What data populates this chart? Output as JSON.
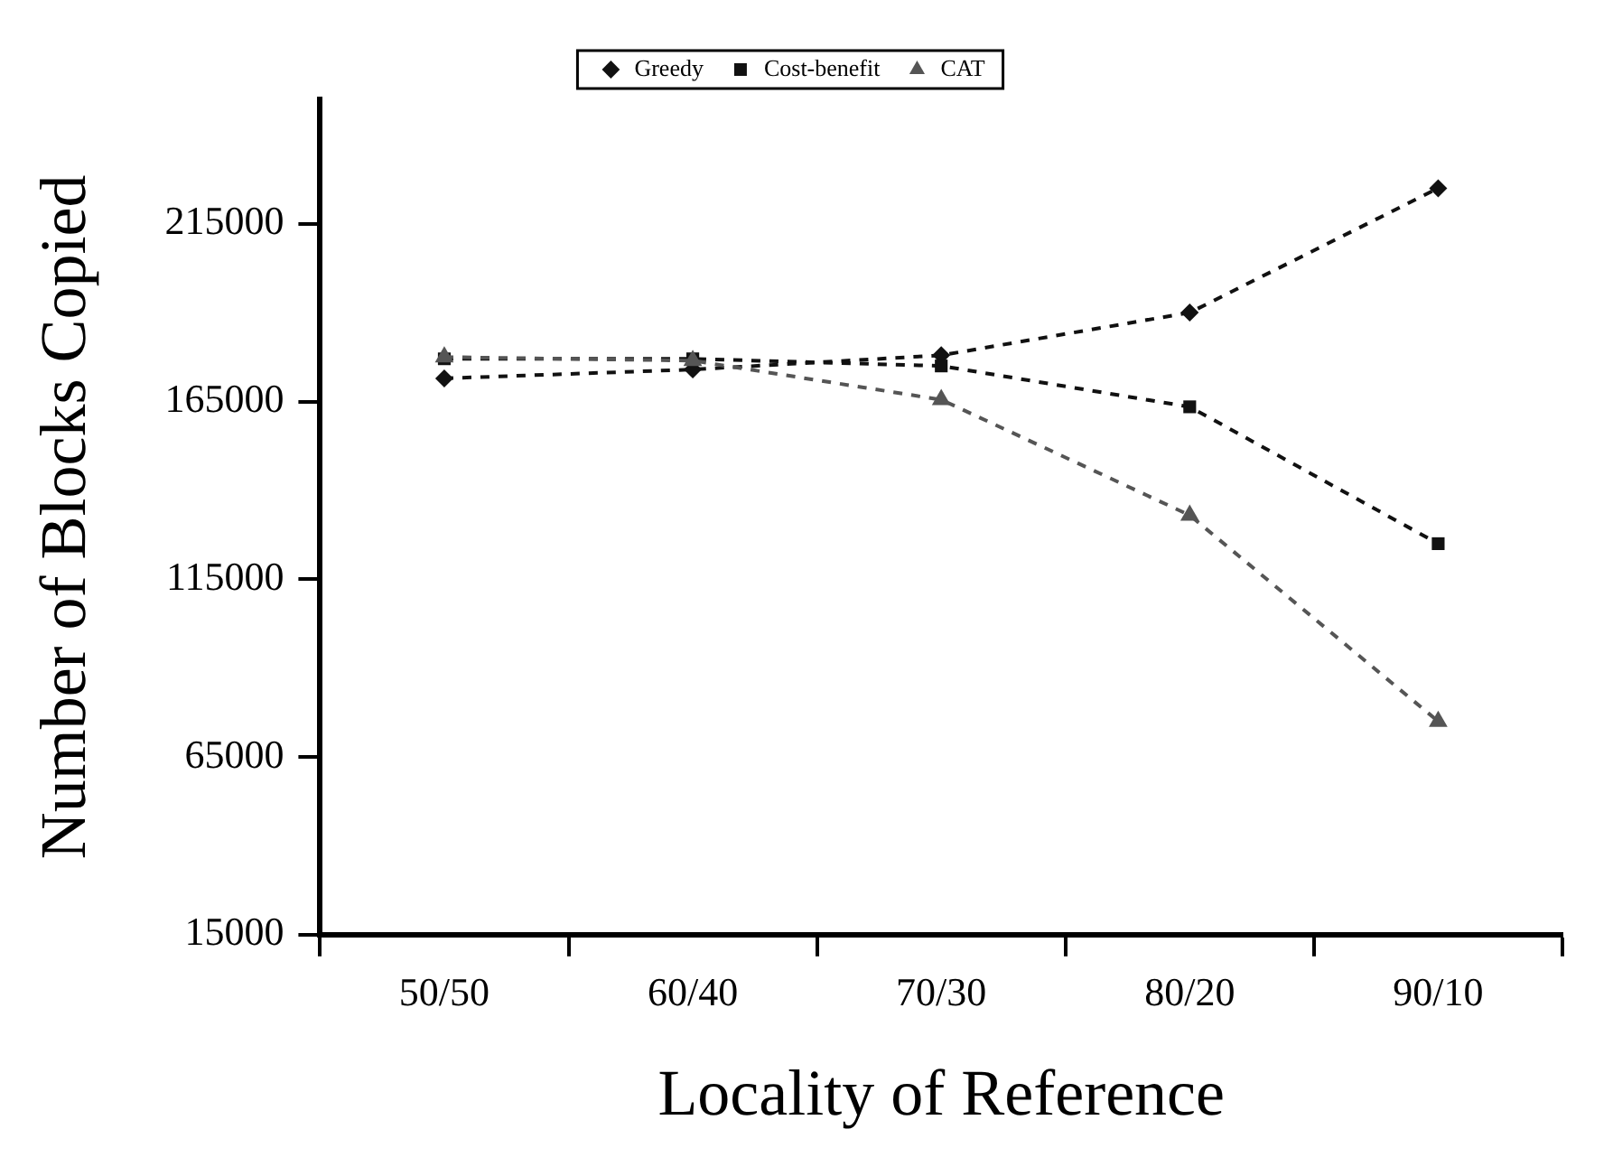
{
  "chart_data": {
    "type": "line",
    "xlabel": "Locality of Reference",
    "ylabel": "Number of Blocks Copied",
    "categories": [
      "50/50",
      "60/40",
      "70/30",
      "80/20",
      "90/10"
    ],
    "series": [
      {
        "name": "Greedy",
        "color": "#111111",
        "marker": "diamond",
        "values": [
          171500,
          174000,
          178000,
          190000,
          225000
        ]
      },
      {
        "name": "Cost-benefit",
        "color": "#111111",
        "marker": "square",
        "values": [
          177000,
          177000,
          175000,
          163500,
          125000
        ]
      },
      {
        "name": "CAT",
        "color": "#555555",
        "marker": "triangle",
        "values": [
          177500,
          176500,
          165500,
          133000,
          75000
        ]
      }
    ],
    "ylim": [
      15000,
      250000
    ],
    "yticks": [
      15000,
      65000,
      115000,
      165000,
      215000
    ],
    "grid": false,
    "legend": "top",
    "line_style": "dashed"
  }
}
